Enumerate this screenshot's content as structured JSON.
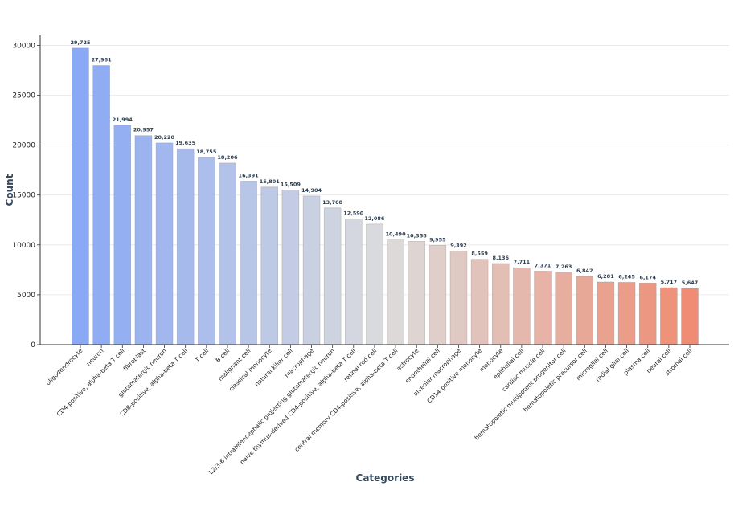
{
  "chart_data": {
    "type": "bar",
    "title": "",
    "xlabel": "Categories",
    "ylabel": "Count",
    "ylim": [
      0,
      31000
    ],
    "yticks": [
      0,
      5000,
      10000,
      15000,
      20000,
      25000,
      30000
    ],
    "grid": "horizontal",
    "colors": {
      "low": "#8aa9f5",
      "mid": "#dcdcdc",
      "high": "#ef8c73",
      "value_label": "#2c3e50",
      "axis_title": "#34495e"
    },
    "categories": [
      "oligodendrocyte",
      "neuron",
      "CD4-positive, alpha-beta T cell",
      "fibroblast",
      "glutamatergic neuron",
      "CD8-positive, alpha-beta T cell",
      "T cell",
      "B cell",
      "malignant cell",
      "classical monocyte",
      "natural killer cell",
      "macrophage",
      "L2/3-6 intratelencephalic projecting glutamatergic neuron",
      "naive thymus-derived CD4-positive, alpha-beta T cell",
      "retinal rod cell",
      "central memory CD4-positive, alpha-beta T cell",
      "astrocyte",
      "endothelial cell",
      "alveolar macrophage",
      "CD14-positive monocyte",
      "monocyte",
      "epithelial cell",
      "cardiac muscle cell",
      "hematopoietic multipotent progenitor cell",
      "hematopoietic precursor cell",
      "microglial cell",
      "radial glial cell",
      "plasma cell",
      "neural cell",
      "stromal cell"
    ],
    "values": [
      29725,
      27981,
      21994,
      20957,
      20220,
      19635,
      18755,
      18206,
      16391,
      15801,
      15509,
      14904,
      13708,
      12590,
      12086,
      10490,
      10358,
      9955,
      9392,
      8559,
      8136,
      7711,
      7371,
      7263,
      6842,
      6281,
      6245,
      6174,
      5717,
      5647
    ],
    "value_labels": [
      "29,725",
      "27,981",
      "21,994",
      "20,957",
      "20,220",
      "19,635",
      "18,755",
      "18,206",
      "16,391",
      "15,801",
      "15,509",
      "14,904",
      "13,708",
      "12,590",
      "12,086",
      "10,490",
      "10,358",
      "9,955",
      "9,392",
      "8,559",
      "8,136",
      "7,711",
      "7,371",
      "7,263",
      "6,842",
      "6,281",
      "6,245",
      "6,174",
      "5,717",
      "5,647"
    ]
  }
}
